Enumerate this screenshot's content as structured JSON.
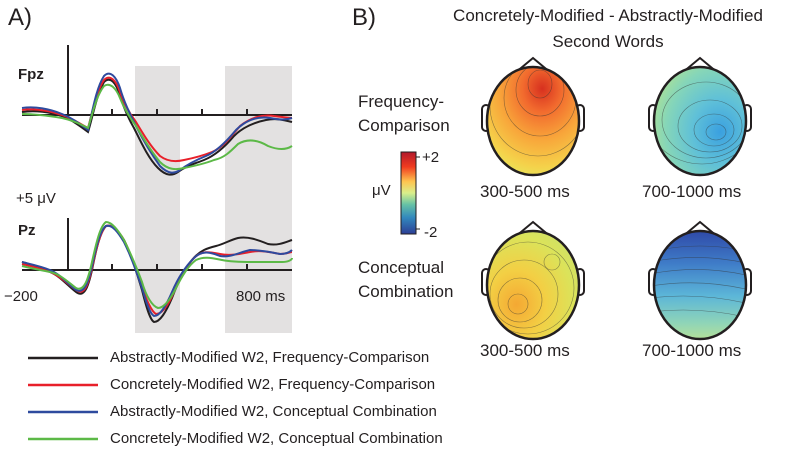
{
  "panel_a": {
    "label": "A)",
    "channels": [
      {
        "name": "Fpz"
      },
      {
        "name": "Pz"
      }
    ],
    "scale_label": "+5 μV",
    "x_start_label": "−200",
    "x_end_label": "800 ms"
  },
  "legend": {
    "items": [
      {
        "label": "Abstractly-Modified W2,  Frequency-Comparison",
        "color": "#231f20"
      },
      {
        "label": "Concretely-Modified W2,  Frequency-Comparison",
        "color": "#e8202a"
      },
      {
        "label": "Abstractly-Modified W2,   Conceptual Combination",
        "color": "#2e4a9e"
      },
      {
        "label": "Concretely-Modified W2,  Conceptual Combination",
        "color": "#5cb947"
      }
    ]
  },
  "panel_b": {
    "label": "B)",
    "title_line1": "Concretely-Modified - Abstractly-Modified",
    "title_line2": "Second Words",
    "row1_label_line1": "Frequency-",
    "row1_label_line2": "Comparison",
    "row2_label_line1": "Conceptual",
    "row2_label_line2": "Combination",
    "colorbar": {
      "unit": "μV",
      "max_label": "+2",
      "min_label": "-2"
    },
    "maps": [
      {
        "window": "300-500 ms",
        "hot": "#e8402a"
      },
      {
        "window": "700-1000 ms",
        "hot": "#4fb5e6"
      },
      {
        "window": "300-500 ms",
        "hot": "#f5b52a"
      },
      {
        "window": "700-1000 ms",
        "hot": "#2f4fa8"
      }
    ]
  }
}
